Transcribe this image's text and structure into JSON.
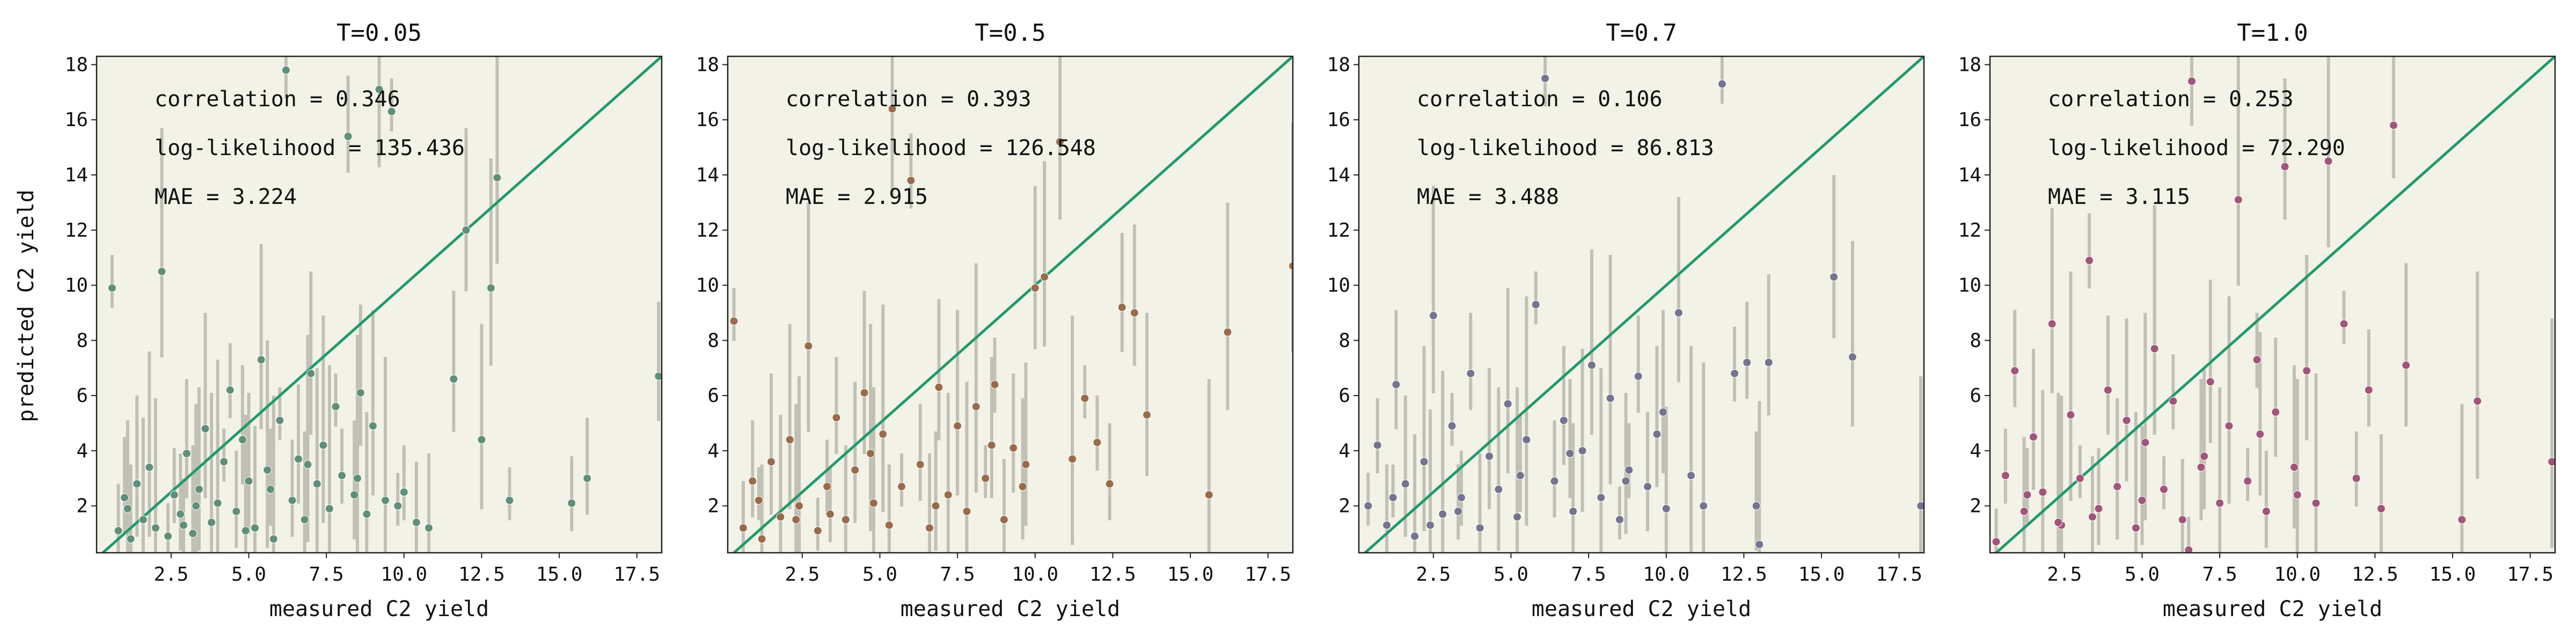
{
  "figure": {
    "ylabel": "predicted C2 yield",
    "xlabel": "measured C2 yield"
  },
  "chart_data": [
    {
      "type": "scatter",
      "title": "T=0.05",
      "xlabel": "measured C2 yield",
      "ylabel": "predicted C2 yield",
      "xlim": [
        0.1,
        18.3
      ],
      "ylim": [
        0.3,
        18.3
      ],
      "xticks": [
        "2.5",
        "5.0",
        "7.5",
        "10.0",
        "12.5",
        "15.0",
        "17.5"
      ],
      "yticks": [
        "2",
        "4",
        "6",
        "8",
        "10",
        "12",
        "14",
        "16",
        "18"
      ],
      "grid": false,
      "stats": {
        "correlation": "correlation = 0.346",
        "loglik": "log-likelihood = 135.436",
        "mae": "MAE = 3.224"
      },
      "point_color": "#5f8f7a",
      "points": [
        [
          0.6,
          9.9
        ],
        [
          0.8,
          1.1
        ],
        [
          1.0,
          2.3
        ],
        [
          1.2,
          0.8
        ],
        [
          1.4,
          2.8
        ],
        [
          1.6,
          1.5
        ],
        [
          1.8,
          3.4
        ],
        [
          2.0,
          1.2
        ],
        [
          2.2,
          10.5
        ],
        [
          2.4,
          0.9
        ],
        [
          2.6,
          2.4
        ],
        [
          2.8,
          1.7
        ],
        [
          3.0,
          3.9
        ],
        [
          3.2,
          1.0
        ],
        [
          3.4,
          2.6
        ],
        [
          3.6,
          4.8
        ],
        [
          3.8,
          1.4
        ],
        [
          4.0,
          2.1
        ],
        [
          4.2,
          3.6
        ],
        [
          4.4,
          6.2
        ],
        [
          4.6,
          1.8
        ],
        [
          4.8,
          4.4
        ],
        [
          5.0,
          2.9
        ],
        [
          5.2,
          1.2
        ],
        [
          5.4,
          7.3
        ],
        [
          5.6,
          3.3
        ],
        [
          5.8,
          0.8
        ],
        [
          6.0,
          5.1
        ],
        [
          6.2,
          17.8
        ],
        [
          6.4,
          2.2
        ],
        [
          6.6,
          3.7
        ],
        [
          6.8,
          1.5
        ],
        [
          7.0,
          6.8
        ],
        [
          7.2,
          2.8
        ],
        [
          7.4,
          4.2
        ],
        [
          7.6,
          1.9
        ],
        [
          7.8,
          5.6
        ],
        [
          8.0,
          3.1
        ],
        [
          8.2,
          15.4
        ],
        [
          8.4,
          2.4
        ],
        [
          8.6,
          6.1
        ],
        [
          8.8,
          1.7
        ],
        [
          9.0,
          4.9
        ],
        [
          9.2,
          17.1
        ],
        [
          9.4,
          2.2
        ],
        [
          9.6,
          16.3
        ],
        [
          10.0,
          2.5
        ],
        [
          10.4,
          1.4
        ],
        [
          10.8,
          1.2
        ],
        [
          11.6,
          6.6
        ],
        [
          12.0,
          12.0
        ],
        [
          12.5,
          4.4
        ],
        [
          12.8,
          9.9
        ],
        [
          13.0,
          13.9
        ],
        [
          13.4,
          2.2
        ],
        [
          15.4,
          2.1
        ],
        [
          15.9,
          3.0
        ],
        [
          18.2,
          6.7
        ],
        [
          1.1,
          1.9
        ],
        [
          3.3,
          2.0
        ],
        [
          4.9,
          1.1
        ],
        [
          6.9,
          3.5
        ],
        [
          8.5,
          3.0
        ],
        [
          9.8,
          2.0
        ],
        [
          2.9,
          1.3
        ],
        [
          5.7,
          2.6
        ]
      ]
    },
    {
      "type": "scatter",
      "title": "T=0.5",
      "xlabel": "measured C2 yield",
      "ylabel": "",
      "xlim": [
        0.1,
        18.3
      ],
      "ylim": [
        0.3,
        18.3
      ],
      "xticks": [
        "2.5",
        "5.0",
        "7.5",
        "10.0",
        "12.5",
        "15.0",
        "17.5"
      ],
      "yticks": [
        "2",
        "4",
        "6",
        "8",
        "10",
        "12",
        "14",
        "16",
        "18"
      ],
      "grid": false,
      "stats": {
        "correlation": "correlation = 0.393",
        "loglik": "log-likelihood = 126.548",
        "mae": "MAE = 2.915"
      },
      "point_color": "#9a6b4b",
      "points": [
        [
          0.3,
          8.7
        ],
        [
          0.6,
          1.2
        ],
        [
          0.9,
          2.9
        ],
        [
          1.2,
          0.8
        ],
        [
          1.5,
          3.6
        ],
        [
          1.8,
          1.6
        ],
        [
          2.1,
          4.4
        ],
        [
          2.4,
          2.0
        ],
        [
          2.7,
          7.8
        ],
        [
          3.0,
          1.1
        ],
        [
          3.3,
          2.7
        ],
        [
          3.6,
          5.2
        ],
        [
          3.9,
          1.5
        ],
        [
          4.2,
          3.3
        ],
        [
          4.5,
          6.1
        ],
        [
          4.8,
          2.1
        ],
        [
          5.1,
          4.6
        ],
        [
          5.4,
          16.4
        ],
        [
          5.7,
          2.7
        ],
        [
          6.0,
          13.8
        ],
        [
          6.3,
          3.5
        ],
        [
          6.6,
          1.2
        ],
        [
          6.9,
          6.3
        ],
        [
          7.2,
          2.4
        ],
        [
          7.5,
          4.9
        ],
        [
          7.8,
          1.8
        ],
        [
          8.1,
          5.6
        ],
        [
          8.4,
          3.0
        ],
        [
          8.7,
          6.4
        ],
        [
          9.0,
          1.5
        ],
        [
          9.3,
          4.1
        ],
        [
          9.6,
          2.7
        ],
        [
          10.0,
          9.9
        ],
        [
          10.3,
          10.3
        ],
        [
          10.8,
          15.2
        ],
        [
          11.2,
          3.7
        ],
        [
          11.6,
          5.9
        ],
        [
          12.0,
          4.3
        ],
        [
          12.4,
          2.8
        ],
        [
          12.8,
          9.2
        ],
        [
          13.2,
          9.0
        ],
        [
          13.6,
          5.3
        ],
        [
          15.6,
          2.4
        ],
        [
          16.2,
          8.3
        ],
        [
          18.3,
          10.7
        ],
        [
          1.1,
          2.2
        ],
        [
          3.4,
          1.7
        ],
        [
          5.3,
          1.3
        ],
        [
          6.8,
          2.0
        ],
        [
          8.6,
          4.2
        ],
        [
          9.7,
          3.5
        ],
        [
          2.3,
          1.5
        ],
        [
          4.7,
          3.9
        ]
      ]
    },
    {
      "type": "scatter",
      "title": "T=0.7",
      "xlabel": "measured C2 yield",
      "ylabel": "",
      "xlim": [
        0.1,
        18.3
      ],
      "ylim": [
        0.3,
        18.3
      ],
      "xticks": [
        "2.5",
        "5.0",
        "7.5",
        "10.0",
        "12.5",
        "15.0",
        "17.5"
      ],
      "yticks": [
        "2",
        "4",
        "6",
        "8",
        "10",
        "12",
        "14",
        "16",
        "18"
      ],
      "grid": false,
      "stats": {
        "correlation": "correlation = 0.106",
        "loglik": "log-likelihood = 86.813",
        "mae": "MAE = 3.488"
      },
      "point_color": "#75738f",
      "points": [
        [
          0.4,
          2.0
        ],
        [
          0.7,
          4.2
        ],
        [
          1.0,
          1.3
        ],
        [
          1.3,
          6.4
        ],
        [
          1.6,
          2.8
        ],
        [
          1.9,
          0.9
        ],
        [
          2.2,
          3.6
        ],
        [
          2.5,
          8.9
        ],
        [
          2.8,
          1.7
        ],
        [
          3.1,
          4.9
        ],
        [
          3.4,
          2.3
        ],
        [
          3.7,
          6.8
        ],
        [
          4.0,
          1.2
        ],
        [
          4.3,
          3.8
        ],
        [
          4.6,
          2.6
        ],
        [
          4.9,
          5.7
        ],
        [
          5.2,
          1.6
        ],
        [
          5.5,
          4.4
        ],
        [
          5.8,
          9.3
        ],
        [
          6.1,
          17.5
        ],
        [
          6.4,
          2.9
        ],
        [
          6.7,
          5.1
        ],
        [
          7.0,
          1.8
        ],
        [
          7.3,
          4.0
        ],
        [
          7.6,
          7.1
        ],
        [
          7.9,
          2.3
        ],
        [
          8.2,
          5.9
        ],
        [
          8.5,
          1.5
        ],
        [
          8.8,
          3.3
        ],
        [
          9.1,
          6.7
        ],
        [
          9.4,
          2.7
        ],
        [
          9.7,
          4.6
        ],
        [
          10.0,
          1.9
        ],
        [
          10.4,
          9.0
        ],
        [
          10.8,
          3.1
        ],
        [
          11.2,
          2.0
        ],
        [
          11.8,
          17.3
        ],
        [
          12.2,
          6.8
        ],
        [
          12.6,
          7.2
        ],
        [
          12.9,
          2.0
        ],
        [
          13.3,
          7.2
        ],
        [
          15.4,
          10.3
        ],
        [
          16.0,
          7.4
        ],
        [
          18.2,
          2.0
        ],
        [
          13.0,
          0.6
        ],
        [
          1.2,
          2.3
        ],
        [
          3.3,
          1.8
        ],
        [
          5.3,
          3.1
        ],
        [
          6.9,
          3.9
        ],
        [
          8.7,
          2.9
        ],
        [
          9.9,
          5.4
        ],
        [
          2.4,
          1.3
        ]
      ]
    },
    {
      "type": "scatter",
      "title": "T=1.0",
      "xlabel": "measured C2 yield",
      "ylabel": "",
      "xlim": [
        0.1,
        18.3
      ],
      "ylim": [
        0.3,
        18.3
      ],
      "xticks": [
        "2.5",
        "5.0",
        "7.5",
        "10.0",
        "12.5",
        "15.0",
        "17.5"
      ],
      "yticks": [
        "2",
        "4",
        "6",
        "8",
        "10",
        "12",
        "14",
        "16",
        "18"
      ],
      "grid": false,
      "stats": {
        "correlation": "correlation = 0.253",
        "loglik": "log-likelihood = 72.290",
        "mae": "MAE = 3.115"
      },
      "point_color": "#a3547a",
      "points": [
        [
          0.3,
          0.7
        ],
        [
          0.6,
          3.1
        ],
        [
          0.9,
          6.9
        ],
        [
          1.2,
          1.8
        ],
        [
          1.5,
          4.5
        ],
        [
          1.8,
          2.5
        ],
        [
          2.1,
          8.6
        ],
        [
          2.4,
          1.3
        ],
        [
          2.7,
          5.3
        ],
        [
          3.0,
          3.0
        ],
        [
          3.3,
          10.9
        ],
        [
          3.6,
          1.9
        ],
        [
          3.9,
          6.2
        ],
        [
          4.2,
          2.7
        ],
        [
          4.5,
          5.1
        ],
        [
          4.8,
          1.2
        ],
        [
          5.1,
          4.3
        ],
        [
          5.4,
          7.7
        ],
        [
          5.7,
          2.6
        ],
        [
          6.0,
          5.8
        ],
        [
          6.3,
          1.5
        ],
        [
          6.6,
          17.4
        ],
        [
          6.9,
          3.4
        ],
        [
          7.2,
          6.5
        ],
        [
          7.5,
          2.1
        ],
        [
          7.8,
          4.9
        ],
        [
          8.1,
          13.1
        ],
        [
          8.4,
          2.9
        ],
        [
          8.7,
          7.3
        ],
        [
          9.0,
          1.8
        ],
        [
          9.3,
          5.4
        ],
        [
          9.6,
          14.3
        ],
        [
          9.9,
          3.4
        ],
        [
          10.3,
          6.9
        ],
        [
          10.6,
          2.1
        ],
        [
          11.0,
          14.5
        ],
        [
          11.5,
          8.6
        ],
        [
          11.9,
          3.0
        ],
        [
          12.3,
          6.2
        ],
        [
          12.7,
          1.9
        ],
        [
          13.1,
          15.8
        ],
        [
          13.5,
          7.1
        ],
        [
          15.3,
          1.5
        ],
        [
          15.8,
          5.8
        ],
        [
          18.2,
          3.6
        ],
        [
          6.5,
          0.4
        ],
        [
          1.3,
          2.4
        ],
        [
          3.4,
          1.6
        ],
        [
          5.0,
          2.2
        ],
        [
          7.0,
          3.8
        ],
        [
          8.8,
          4.6
        ],
        [
          10.0,
          2.4
        ],
        [
          2.3,
          1.4
        ]
      ]
    }
  ]
}
